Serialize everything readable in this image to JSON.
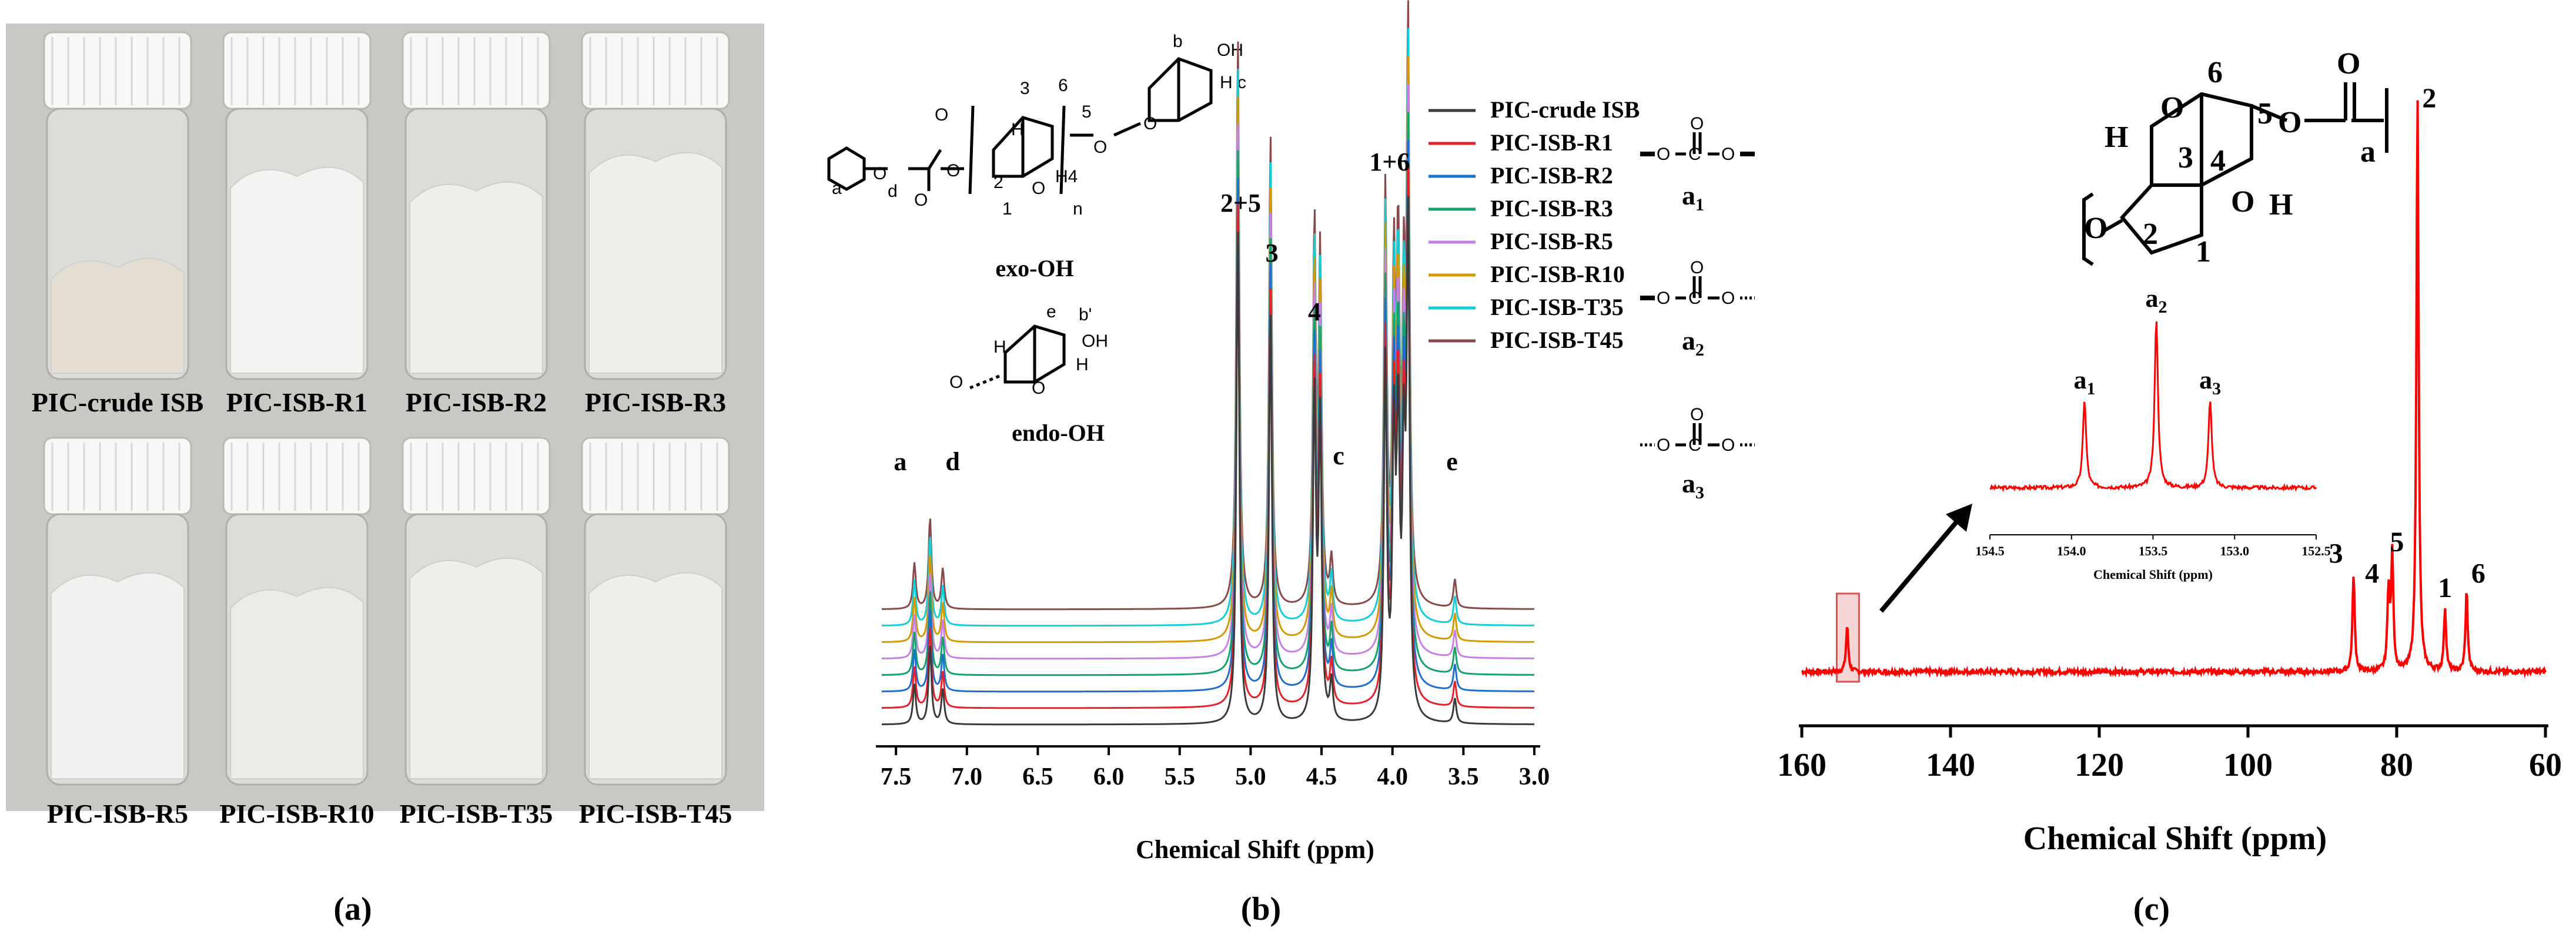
{
  "panel_labels": {
    "a": "(a)",
    "b": "(b)",
    "c": "(c)"
  },
  "panel_a": {
    "vials": [
      {
        "label": "PIC-crude ISB",
        "fill": "#e4ddd2"
      },
      {
        "label": "PIC-ISB-R1",
        "fill": "#f3f3f1"
      },
      {
        "label": "PIC-ISB-R2",
        "fill": "#eeeeea"
      },
      {
        "label": "PIC-ISB-R3",
        "fill": "#efefec"
      },
      {
        "label": "PIC-ISB-R5",
        "fill": "#f1f1ef"
      },
      {
        "label": "PIC-ISB-R10",
        "fill": "#ebebe8"
      },
      {
        "label": "PIC-ISB-T35",
        "fill": "#eeeeeb"
      },
      {
        "label": "PIC-ISB-T45",
        "fill": "#efefec"
      }
    ]
  },
  "chart_data": [
    {
      "type": "line",
      "panel": "b",
      "title": "",
      "xlabel": "Chemical Shift (ppm)",
      "ylabel": "",
      "xlim": [
        7.6,
        3.0
      ],
      "x_reversed": true,
      "xticks": [
        "7.5",
        "7.0",
        "6.5",
        "6.0",
        "5.5",
        "5.0",
        "4.5",
        "4.0",
        "3.5",
        "3.0"
      ],
      "xtick_values": [
        7.5,
        7.0,
        6.5,
        6.0,
        5.5,
        5.0,
        4.5,
        4.0,
        3.5,
        3.0
      ],
      "legend_position": "top-right",
      "peaks": [
        {
          "x": 7.37,
          "h": 0.08
        },
        {
          "x": 7.26,
          "h": 0.16
        },
        {
          "x": 7.17,
          "h": 0.07
        },
        {
          "x": 5.09,
          "h": 1.0
        },
        {
          "x": 4.86,
          "h": 0.83
        },
        {
          "x": 4.55,
          "h": 0.66
        },
        {
          "x": 4.51,
          "h": 0.6
        },
        {
          "x": 4.43,
          "h": 0.08
        },
        {
          "x": 4.05,
          "h": 0.72
        },
        {
          "x": 3.99,
          "h": 0.55
        },
        {
          "x": 3.96,
          "h": 0.58
        },
        {
          "x": 3.92,
          "h": 0.48
        },
        {
          "x": 3.89,
          "h": 0.98
        },
        {
          "x": 3.56,
          "h": 0.05
        }
      ],
      "series": [
        {
          "name": "PIC-crude ISB",
          "color": "#3b3b3b",
          "offset": 0
        },
        {
          "name": "PIC-ISB-R1",
          "color": "#e8202a",
          "offset": 1
        },
        {
          "name": "PIC-ISB-R2",
          "color": "#1f6fd0",
          "offset": 2
        },
        {
          "name": "PIC-ISB-R3",
          "color": "#14a36a",
          "offset": 3
        },
        {
          "name": "PIC-ISB-R5",
          "color": "#c880e6",
          "offset": 4
        },
        {
          "name": "PIC-ISB-R10",
          "color": "#d49a00",
          "offset": 5
        },
        {
          "name": "PIC-ISB-T35",
          "color": "#13cfd9",
          "offset": 6
        },
        {
          "name": "PIC-ISB-T45",
          "color": "#8b4a4a",
          "offset": 7
        }
      ],
      "annotations": [
        {
          "text": "a",
          "x": 7.47
        },
        {
          "text": "d",
          "x": 7.1
        },
        {
          "text": "2+5",
          "x": 5.07
        },
        {
          "text": "3",
          "x": 4.85
        },
        {
          "text": "4",
          "x": 4.55
        },
        {
          "text": "c",
          "x": 4.38
        },
        {
          "text": "1+6",
          "x": 4.02
        },
        {
          "text": "e",
          "x": 3.58
        }
      ],
      "structure_labels": {
        "exo": "exo-OH",
        "endo": "endo-OH"
      }
    },
    {
      "type": "line",
      "panel": "c",
      "title": "",
      "xlabel": "Chemical Shift (ppm)",
      "ylabel": "",
      "xlim": [
        160,
        60
      ],
      "x_reversed": true,
      "xticks": [
        "160",
        "140",
        "120",
        "100",
        "80",
        "60"
      ],
      "xtick_values": [
        160,
        140,
        120,
        100,
        80,
        60
      ],
      "color": "#ff0000",
      "peaks": [
        {
          "x": 153.9,
          "h": 0.08,
          "label": ""
        },
        {
          "x": 85.8,
          "h": 0.17,
          "label": "3"
        },
        {
          "x": 81.1,
          "h": 0.14,
          "label": "4"
        },
        {
          "x": 80.6,
          "h": 0.2,
          "label": "5"
        },
        {
          "x": 77.2,
          "h": 1.0,
          "label": "2"
        },
        {
          "x": 73.5,
          "h": 0.11,
          "label": "1"
        },
        {
          "x": 70.6,
          "h": 0.14,
          "label": "6"
        }
      ],
      "inset": {
        "xlim": [
          154.5,
          152.5
        ],
        "xlabel": "Chemical Shift (ppm)",
        "xticks": [
          "154.5",
          "154.0",
          "153.5",
          "153.0",
          "152.5"
        ],
        "xtick_values": [
          154.5,
          154.0,
          153.5,
          153.0,
          152.5
        ],
        "peaks": [
          {
            "x": 153.92,
            "h": 0.52,
            "label": "a1"
          },
          {
            "x": 153.48,
            "h": 1.0,
            "label": "a2"
          },
          {
            "x": 153.15,
            "h": 0.52,
            "label": "a3"
          }
        ]
      },
      "carbonate_labels": [
        "a1",
        "a2",
        "a3"
      ],
      "structure_labels": [
        "1",
        "2",
        "3",
        "4",
        "5",
        "6",
        "a",
        "H",
        "H",
        "O",
        "O",
        "O",
        "O",
        "O"
      ]
    }
  ]
}
